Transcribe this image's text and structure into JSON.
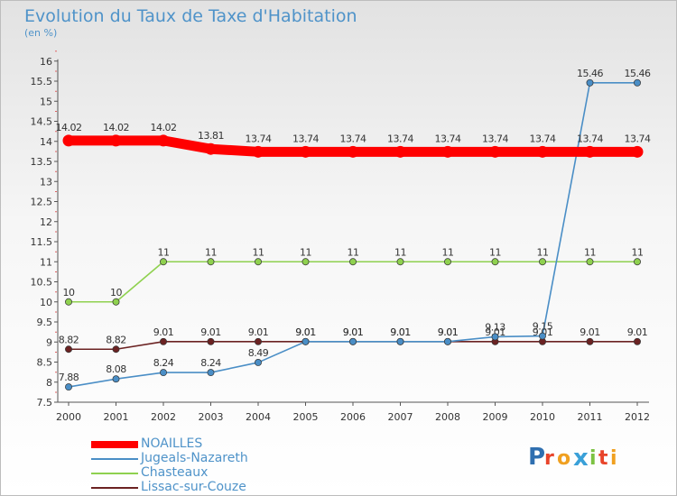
{
  "chart_data": {
    "type": "line",
    "title": "Evolution du Taux de Taxe d'Habitation",
    "subtitle": "(en %)",
    "categories": [
      "2000",
      "2001",
      "2002",
      "2003",
      "2004",
      "2005",
      "2006",
      "2007",
      "2008",
      "2009",
      "2010",
      "2011",
      "2012"
    ],
    "ylim": [
      7.5,
      16
    ],
    "yticks": [
      "7.5",
      "8",
      "8.5",
      "9",
      "9.5",
      "10",
      "10.5",
      "11",
      "11.5",
      "12",
      "12.5",
      "13",
      "13.5",
      "14",
      "14.5",
      "15",
      "15.5",
      "16"
    ],
    "grid": false,
    "legend_position": "bottom-left",
    "series": [
      {
        "name": "NOAILLES",
        "color": "#ff0000",
        "values": [
          14.02,
          14.02,
          14.02,
          13.81,
          13.74,
          13.74,
          13.74,
          13.74,
          13.74,
          13.74,
          13.74,
          13.74,
          13.74
        ],
        "labels": [
          "14.02",
          "14.02",
          "14.02",
          "13.81",
          "13.74",
          "13.74",
          "13.74",
          "13.74",
          "13.74",
          "13.74",
          "13.74",
          "13.74",
          "13.74"
        ]
      },
      {
        "name": "Jugeals-Nazareth",
        "color": "#4a8ec6",
        "values": [
          7.88,
          8.08,
          8.24,
          8.24,
          8.49,
          9.01,
          9.01,
          9.01,
          9.01,
          9.13,
          9.15,
          15.46,
          15.46
        ],
        "labels": [
          "7.88",
          "8.08",
          "8.24",
          "8.24",
          "8.49",
          "9.01",
          "9.01",
          "9.01",
          "9.01",
          "9.13",
          "9.15",
          "15.46",
          "15.46"
        ]
      },
      {
        "name": "Chasteaux",
        "color": "#8fd14f",
        "values": [
          10,
          10,
          11,
          11,
          11,
          11,
          11,
          11,
          11,
          11,
          11,
          11,
          11
        ],
        "labels": [
          "10",
          "10",
          "11",
          "11",
          "11",
          "11",
          "11",
          "11",
          "11",
          "11",
          "11",
          "11",
          "11"
        ]
      },
      {
        "name": "Lissac-sur-Couze",
        "color": "#6b2222",
        "values": [
          8.82,
          8.82,
          9.01,
          9.01,
          9.01,
          9.01,
          9.01,
          9.01,
          9.01,
          9.01,
          9.01,
          9.01,
          9.01
        ],
        "labels": [
          "8.82",
          "8.82",
          "9.01",
          "9.01",
          "9.01",
          "9.01",
          "9.01",
          "9.01",
          "9.01",
          "9.01",
          "9.01",
          "9.01",
          "9.01"
        ]
      }
    ]
  },
  "logo": {
    "text": "Proxiti"
  }
}
